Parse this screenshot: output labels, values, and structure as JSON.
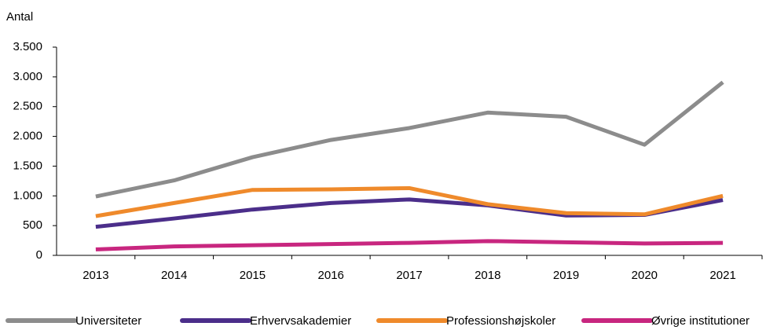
{
  "chart_data": {
    "type": "line",
    "y_label": "Antal",
    "categories": [
      "2013",
      "2014",
      "2015",
      "2016",
      "2017",
      "2018",
      "2019",
      "2020",
      "2021"
    ],
    "series": [
      {
        "name": "Universiteter",
        "color": "#8c8c8c",
        "values": [
          990,
          1260,
          1650,
          1940,
          2140,
          2400,
          2330,
          1860,
          2910
        ]
      },
      {
        "name": "Erhvervsakademier",
        "color": "#4b2e8a",
        "values": [
          480,
          620,
          770,
          880,
          940,
          840,
          670,
          680,
          930
        ]
      },
      {
        "name": "Professionshøjskoler",
        "color": "#ef8a2b",
        "values": [
          660,
          880,
          1100,
          1110,
          1130,
          860,
          710,
          690,
          1000
        ]
      },
      {
        "name": "Øvrige institutioner",
        "color": "#c8267f",
        "values": [
          100,
          150,
          170,
          190,
          210,
          240,
          220,
          200,
          210
        ]
      }
    ],
    "ylim": [
      0,
      3500
    ],
    "yticks": [
      0,
      500,
      {
        "value": 1000,
        "label": "1.000"
      },
      {
        "value": 1500,
        "label": "1.500"
      },
      {
        "value": 2000,
        "label": "2.000"
      },
      {
        "value": 2500,
        "label": "2.500"
      },
      {
        "value": 3000,
        "label": "3.000"
      },
      {
        "value": 3500,
        "label": "3.500"
      }
    ],
    "legend": "bottom"
  }
}
